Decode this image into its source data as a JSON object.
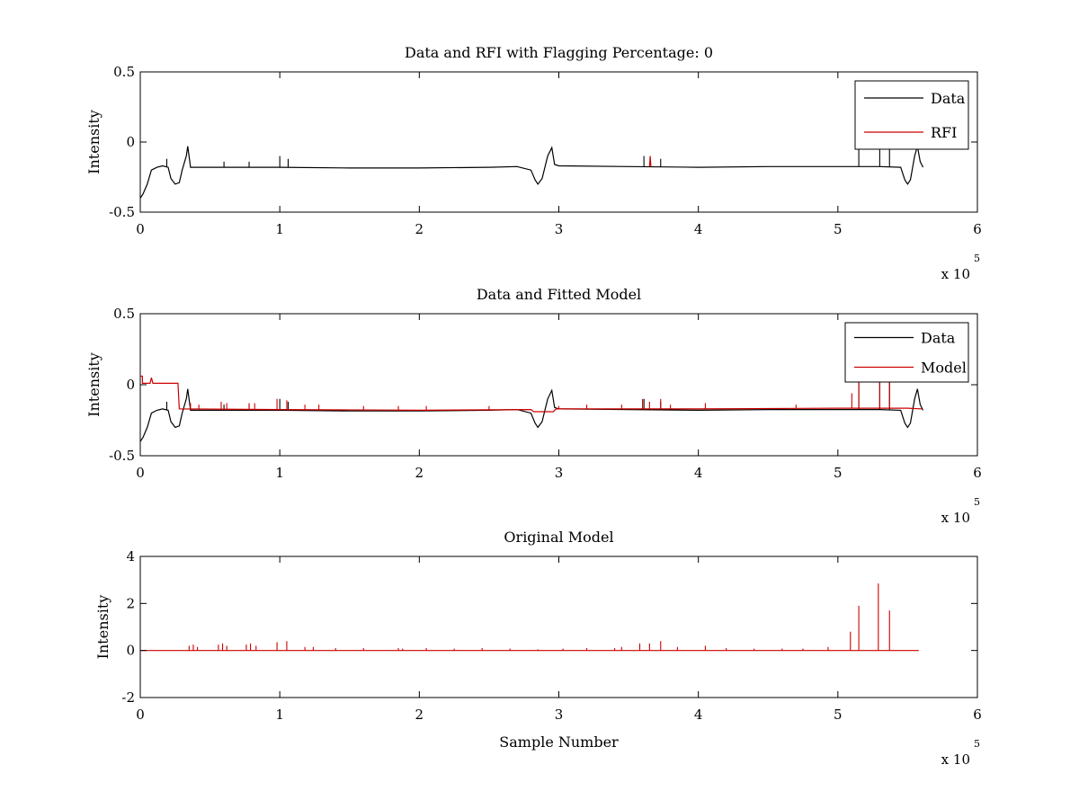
{
  "figure": {
    "background": "#ffffff"
  },
  "chart_data": [
    {
      "type": "line",
      "title": "Data and RFI with Flagging Percentage: 0",
      "xlabel": "",
      "ylabel": "Intensity",
      "xlim": [
        0,
        600000
      ],
      "ylim": [
        -0.5,
        0.5
      ],
      "xticks": [
        "0",
        "1",
        "2",
        "3",
        "4",
        "5",
        "6"
      ],
      "yticks": [
        "-0.5",
        "0",
        "0.5"
      ],
      "x_multiplier": {
        "base": "x 10",
        "exponent": "5"
      },
      "legend": {
        "placement": "top-right",
        "entries": [
          "Data",
          "RFI"
        ]
      },
      "grid": false,
      "series": [
        {
          "name": "Data",
          "color": "#000000",
          "points": [
            [
              0,
              -0.4
            ],
            [
              2000,
              -0.37
            ],
            [
              5000,
              -0.3
            ],
            [
              8000,
              -0.2
            ],
            [
              12000,
              -0.18
            ],
            [
              16000,
              -0.17
            ],
            [
              20000,
              -0.18
            ],
            [
              22000,
              -0.26
            ],
            [
              25000,
              -0.3
            ],
            [
              28000,
              -0.29
            ],
            [
              30000,
              -0.2
            ],
            [
              33000,
              -0.1
            ],
            [
              34000,
              -0.03
            ],
            [
              36000,
              -0.18
            ],
            [
              60000,
              -0.18
            ],
            [
              100000,
              -0.18
            ],
            [
              150000,
              -0.185
            ],
            [
              200000,
              -0.185
            ],
            [
              250000,
              -0.18
            ],
            [
              270000,
              -0.175
            ],
            [
              280000,
              -0.2
            ],
            [
              283000,
              -0.27
            ],
            [
              285000,
              -0.3
            ],
            [
              288000,
              -0.26
            ],
            [
              292000,
              -0.1
            ],
            [
              295000,
              -0.04
            ],
            [
              297000,
              -0.16
            ],
            [
              300000,
              -0.17
            ],
            [
              350000,
              -0.175
            ],
            [
              400000,
              -0.18
            ],
            [
              450000,
              -0.175
            ],
            [
              500000,
              -0.175
            ],
            [
              530000,
              -0.175
            ],
            [
              545000,
              -0.18
            ],
            [
              548000,
              -0.27
            ],
            [
              550000,
              -0.3
            ],
            [
              552000,
              -0.27
            ],
            [
              555000,
              -0.1
            ],
            [
              557000,
              -0.03
            ],
            [
              559000,
              -0.14
            ],
            [
              561000,
              -0.18
            ]
          ],
          "spikes": [
            [
              19000,
              -0.12
            ],
            [
              60000,
              -0.14
            ],
            [
              78000,
              -0.14
            ],
            [
              100000,
              -0.1
            ],
            [
              106000,
              -0.12
            ],
            [
              361000,
              -0.1
            ],
            [
              373000,
              -0.12
            ],
            [
              515000,
              0.03
            ],
            [
              530000,
              0.03
            ],
            [
              537000,
              0.03
            ]
          ]
        },
        {
          "name": "RFI",
          "color": "#cc0000",
          "points": [
            [
              365000,
              -0.175
            ],
            [
              365500,
              -0.1
            ],
            [
              366000,
              -0.175
            ]
          ],
          "spikes": []
        }
      ]
    },
    {
      "type": "line",
      "title": "Data and Fitted Model",
      "xlabel": "",
      "ylabel": "Intensity",
      "xlim": [
        0,
        600000
      ],
      "ylim": [
        -0.5,
        0.5
      ],
      "xticks": [
        "0",
        "1",
        "2",
        "3",
        "4",
        "5",
        "6"
      ],
      "yticks": [
        "-0.5",
        "0",
        "0.5"
      ],
      "x_multiplier": {
        "base": "x 10",
        "exponent": "5"
      },
      "legend": {
        "placement": "top-right",
        "entries": [
          "Data",
          "Model"
        ]
      },
      "grid": false,
      "series": [
        {
          "name": "Data",
          "color": "#000000",
          "points": [
            [
              0,
              -0.4
            ],
            [
              2000,
              -0.37
            ],
            [
              5000,
              -0.3
            ],
            [
              8000,
              -0.2
            ],
            [
              12000,
              -0.18
            ],
            [
              16000,
              -0.17
            ],
            [
              20000,
              -0.18
            ],
            [
              22000,
              -0.26
            ],
            [
              25000,
              -0.3
            ],
            [
              28000,
              -0.29
            ],
            [
              30000,
              -0.2
            ],
            [
              33000,
              -0.1
            ],
            [
              34000,
              -0.03
            ],
            [
              36000,
              -0.18
            ],
            [
              60000,
              -0.18
            ],
            [
              100000,
              -0.18
            ],
            [
              150000,
              -0.185
            ],
            [
              200000,
              -0.185
            ],
            [
              250000,
              -0.18
            ],
            [
              270000,
              -0.175
            ],
            [
              280000,
              -0.2
            ],
            [
              283000,
              -0.27
            ],
            [
              285000,
              -0.3
            ],
            [
              288000,
              -0.26
            ],
            [
              292000,
              -0.1
            ],
            [
              295000,
              -0.04
            ],
            [
              297000,
              -0.16
            ],
            [
              300000,
              -0.17
            ],
            [
              350000,
              -0.175
            ],
            [
              400000,
              -0.18
            ],
            [
              450000,
              -0.175
            ],
            [
              500000,
              -0.175
            ],
            [
              530000,
              -0.175
            ],
            [
              545000,
              -0.18
            ],
            [
              548000,
              -0.27
            ],
            [
              550000,
              -0.3
            ],
            [
              552000,
              -0.27
            ],
            [
              555000,
              -0.1
            ],
            [
              557000,
              -0.03
            ],
            [
              559000,
              -0.14
            ],
            [
              561000,
              -0.18
            ]
          ],
          "spikes": [
            [
              19000,
              -0.12
            ],
            [
              60000,
              -0.14
            ],
            [
              78000,
              -0.14
            ],
            [
              100000,
              -0.1
            ],
            [
              106000,
              -0.12
            ],
            [
              361000,
              -0.1
            ],
            [
              373000,
              -0.12
            ],
            [
              515000,
              0.03
            ],
            [
              530000,
              0.03
            ],
            [
              537000,
              0.03
            ]
          ]
        },
        {
          "name": "Model",
          "color": "#cc0000",
          "points": [
            [
              0,
              0.06
            ],
            [
              1500,
              0.06
            ],
            [
              1600,
              0.01
            ],
            [
              7000,
              0.01
            ],
            [
              8000,
              0.05
            ],
            [
              9000,
              0.01
            ],
            [
              27000,
              0.01
            ],
            [
              28000,
              -0.17
            ],
            [
              100000,
              -0.175
            ],
            [
              200000,
              -0.18
            ],
            [
              280000,
              -0.175
            ],
            [
              282000,
              -0.19
            ],
            [
              296000,
              -0.19
            ],
            [
              298000,
              -0.17
            ],
            [
              400000,
              -0.17
            ],
            [
              500000,
              -0.165
            ],
            [
              550000,
              -0.165
            ],
            [
              560000,
              -0.17
            ]
          ],
          "spikes": [
            [
              36000,
              -0.13
            ],
            [
              42000,
              -0.14
            ],
            [
              58000,
              -0.12
            ],
            [
              62000,
              -0.13
            ],
            [
              78000,
              -0.13
            ],
            [
              82000,
              -0.13
            ],
            [
              98000,
              -0.1
            ],
            [
              105000,
              -0.11
            ],
            [
              118000,
              -0.14
            ],
            [
              128000,
              -0.14
            ],
            [
              160000,
              -0.15
            ],
            [
              185000,
              -0.15
            ],
            [
              205000,
              -0.15
            ],
            [
              250000,
              -0.15
            ],
            [
              300000,
              -0.15
            ],
            [
              320000,
              -0.14
            ],
            [
              345000,
              -0.14
            ],
            [
              360000,
              -0.1
            ],
            [
              365000,
              -0.12
            ],
            [
              373000,
              -0.1
            ],
            [
              380000,
              -0.14
            ],
            [
              405000,
              -0.13
            ],
            [
              470000,
              -0.14
            ],
            [
              510000,
              -0.06
            ],
            [
              515000,
              0.03
            ],
            [
              530000,
              0.03
            ],
            [
              537000,
              0.03
            ]
          ]
        }
      ]
    },
    {
      "type": "line",
      "title": "Original Model",
      "xlabel": "Sample Number",
      "ylabel": "Intensity",
      "xlim": [
        0,
        600000
      ],
      "ylim": [
        -2,
        4
      ],
      "xticks": [
        "0",
        "1",
        "2",
        "3",
        "4",
        "5",
        "6"
      ],
      "yticks": [
        "-2",
        "0",
        "2",
        "4"
      ],
      "x_multiplier": {
        "base": "x 10",
        "exponent": "5"
      },
      "legend": null,
      "grid": false,
      "series": [
        {
          "name": "",
          "color": "#cc0000",
          "points": [
            [
              0,
              0
            ],
            [
              558000,
              0
            ]
          ],
          "spikes": [
            [
              35000,
              0.2
            ],
            [
              38000,
              0.25
            ],
            [
              41000,
              0.15
            ],
            [
              56000,
              0.25
            ],
            [
              59000,
              0.3
            ],
            [
              62000,
              0.2
            ],
            [
              76000,
              0.25
            ],
            [
              79000,
              0.3
            ],
            [
              83000,
              0.2
            ],
            [
              98000,
              0.35
            ],
            [
              105000,
              0.4
            ],
            [
              118000,
              0.15
            ],
            [
              124000,
              0.15
            ],
            [
              140000,
              0.1
            ],
            [
              160000,
              0.1
            ],
            [
              185000,
              0.1
            ],
            [
              188000,
              0.08
            ],
            [
              205000,
              0.1
            ],
            [
              225000,
              0.08
            ],
            [
              245000,
              0.1
            ],
            [
              265000,
              0.08
            ],
            [
              285000,
              0.05
            ],
            [
              303000,
              0.08
            ],
            [
              320000,
              0.1
            ],
            [
              340000,
              0.1
            ],
            [
              345000,
              0.15
            ],
            [
              358000,
              0.3
            ],
            [
              365000,
              0.3
            ],
            [
              373000,
              0.4
            ],
            [
              385000,
              0.15
            ],
            [
              405000,
              0.2
            ],
            [
              420000,
              0.1
            ],
            [
              440000,
              0.08
            ],
            [
              460000,
              0.08
            ],
            [
              475000,
              0.08
            ],
            [
              493000,
              0.15
            ],
            [
              509000,
              0.8
            ],
            [
              515000,
              1.9
            ],
            [
              529000,
              2.85
            ],
            [
              537000,
              1.7
            ]
          ]
        }
      ]
    }
  ]
}
